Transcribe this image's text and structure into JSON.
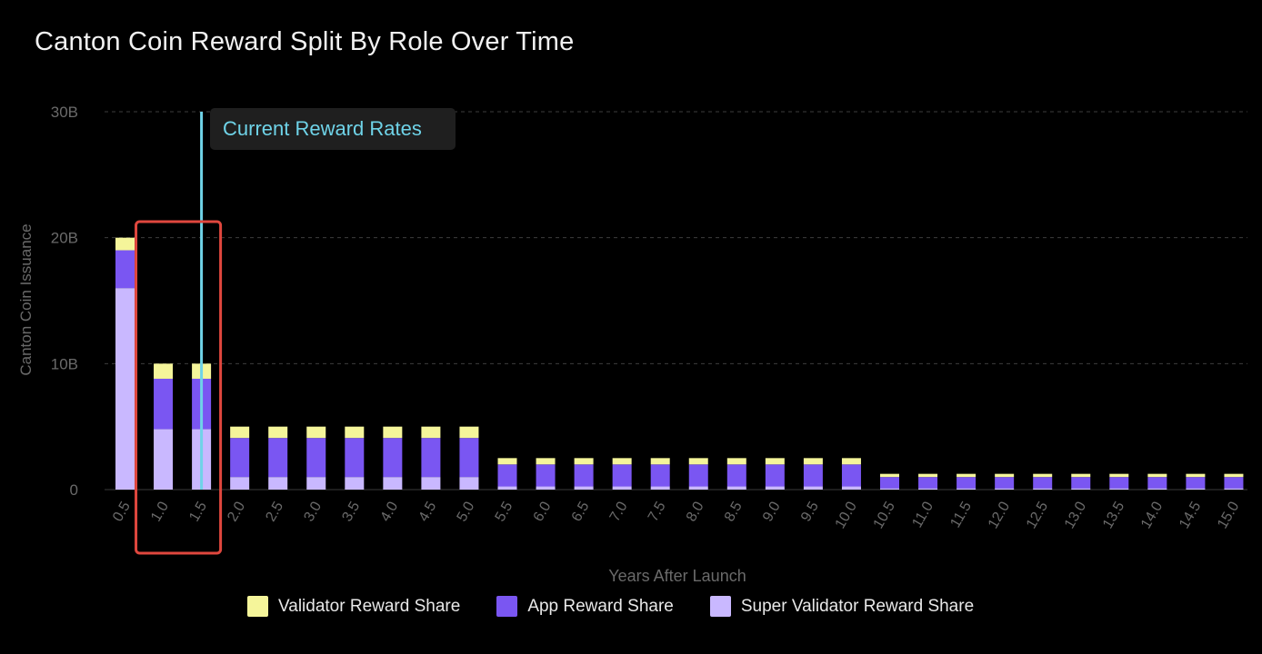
{
  "title": "Canton Coin Reward Split By Role Over Time",
  "chart_data": {
    "type": "bar",
    "stacked": true,
    "xlabel": "Years After Launch",
    "ylabel": "Canton Coin Issuance",
    "ylim": [
      0,
      30
    ],
    "yticks": [
      {
        "value": 0,
        "label": "0"
      },
      {
        "value": 10,
        "label": "10B"
      },
      {
        "value": 20,
        "label": "20B"
      },
      {
        "value": 30,
        "label": "30B"
      }
    ],
    "grid": true,
    "categories": [
      "0.5",
      "1.0",
      "1.5",
      "2.0",
      "2.5",
      "3.0",
      "3.5",
      "4.0",
      "4.5",
      "5.0",
      "5.5",
      "6.0",
      "6.5",
      "7.0",
      "7.5",
      "8.0",
      "8.5",
      "9.0",
      "9.5",
      "10.0",
      "10.5",
      "11.0",
      "11.5",
      "12.0",
      "12.5",
      "13.0",
      "13.5",
      "14.0",
      "14.5",
      "15.0"
    ],
    "series": [
      {
        "name": "Super Validator Reward Share",
        "color": "#c9b8ff",
        "values": [
          16,
          4.8,
          4.8,
          1.0,
          1.0,
          1.0,
          1.0,
          1.0,
          1.0,
          1.0,
          0.25,
          0.25,
          0.25,
          0.25,
          0.25,
          0.25,
          0.25,
          0.25,
          0.25,
          0.25,
          0.1,
          0.1,
          0.1,
          0.1,
          0.1,
          0.1,
          0.1,
          0.1,
          0.1,
          0.1
        ]
      },
      {
        "name": "App Reward Share",
        "color": "#7a56f2",
        "values": [
          3.0,
          4.0,
          4.0,
          3.1,
          3.1,
          3.1,
          3.1,
          3.1,
          3.1,
          3.1,
          1.75,
          1.75,
          1.75,
          1.75,
          1.75,
          1.75,
          1.75,
          1.75,
          1.75,
          1.75,
          0.9,
          0.9,
          0.9,
          0.9,
          0.9,
          0.9,
          0.9,
          0.9,
          0.9,
          0.9
        ]
      },
      {
        "name": "Validator Reward Share",
        "color": "#f5f59a",
        "values": [
          1.0,
          1.2,
          1.2,
          0.9,
          0.9,
          0.9,
          0.9,
          0.9,
          0.9,
          0.9,
          0.5,
          0.5,
          0.5,
          0.5,
          0.5,
          0.5,
          0.5,
          0.5,
          0.5,
          0.5,
          0.25,
          0.25,
          0.25,
          0.25,
          0.25,
          0.25,
          0.25,
          0.25,
          0.25,
          0.25
        ]
      }
    ],
    "legend": {
      "placement": "bottom",
      "order": [
        "Validator Reward Share",
        "App Reward Share",
        "Super Validator Reward Share"
      ]
    },
    "annotation": {
      "label": "Current Reward Rates",
      "x": "1.5",
      "line_color": "#6fd3e8",
      "text_color": "#6fd3e8"
    },
    "highlight": {
      "categories": [
        "1.0",
        "1.5"
      ],
      "color": "#e0473e"
    }
  }
}
